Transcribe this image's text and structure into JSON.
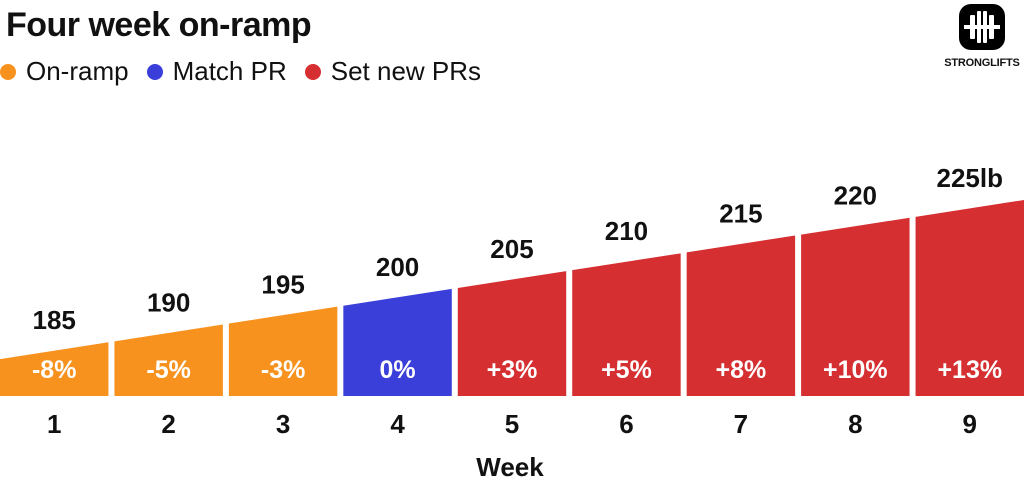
{
  "title": "Four week on-ramp",
  "legend": {
    "items": [
      {
        "label": "On-ramp",
        "color": "#f7921e"
      },
      {
        "label": "Match PR",
        "color": "#3a3fd9"
      },
      {
        "label": "Set new PRs",
        "color": "#d62f31"
      }
    ]
  },
  "logo": {
    "text": "STRONGLIFTS",
    "icon": "barbell-icon"
  },
  "chart_data": {
    "type": "bar",
    "title": "Four week on-ramp",
    "xlabel": "Week",
    "ylabel": "",
    "categories": [
      "1",
      "2",
      "3",
      "4",
      "5",
      "6",
      "7",
      "8",
      "9"
    ],
    "values": [
      185,
      190,
      195,
      200,
      205,
      210,
      215,
      220,
      225
    ],
    "value_labels": [
      "185",
      "190",
      "195",
      "200",
      "205",
      "210",
      "215",
      "220",
      "225lb"
    ],
    "percent_labels": [
      "-8%",
      "-5%",
      "-3%",
      "0%",
      "+3%",
      "+5%",
      "+8%",
      "+10%",
      "+13%"
    ],
    "phases": [
      "On-ramp",
      "On-ramp",
      "On-ramp",
      "Match PR",
      "Set new PRs",
      "Set new PRs",
      "Set new PRs",
      "Set new PRs",
      "Set new PRs"
    ],
    "colors": {
      "On-ramp": "#f7921e",
      "Match PR": "#3a3fd9",
      "Set new PRs": "#d62f31"
    },
    "grid": false,
    "legend_position": "top-left"
  }
}
